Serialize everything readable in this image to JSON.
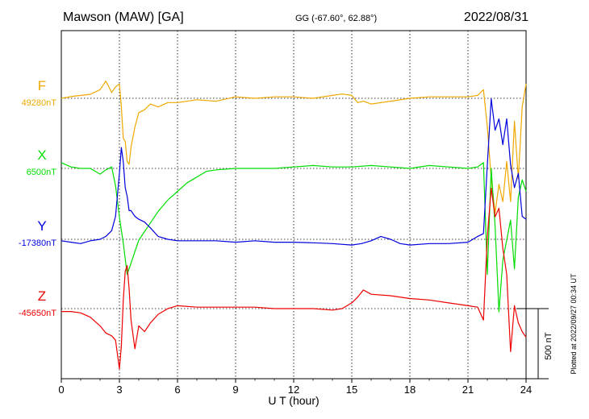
{
  "header": {
    "station": "Mawson (MAW)  [GA]",
    "coords": "GG (-67.60°,  62.88°)",
    "date": "2022/08/31"
  },
  "footer": {
    "plotted": "Plotted at 2022/09/27 00:34 UT"
  },
  "colors": {
    "F": "#f0a800",
    "X": "#00dd00",
    "Y": "#0000dd",
    "Z": "#ee0000",
    "axis": "#000000"
  },
  "chart_data": {
    "type": "line",
    "xlabel": "U T (hour)",
    "xlim": [
      0,
      24
    ],
    "x_ticks": [
      "0",
      "3",
      "6",
      "9",
      "12",
      "15",
      "18",
      "21",
      "24"
    ],
    "scale_bar": {
      "label": "500 nT",
      "value_nT": 500
    },
    "series": [
      {
        "name": "F",
        "baseline_label": "49280nT",
        "baseline_nT": 49280,
        "x": [
          0,
          0.5,
          1,
          1.5,
          2,
          2.3,
          2.6,
          2.8,
          3.0,
          3.1,
          3.2,
          3.3,
          3.4,
          3.5,
          3.6,
          3.8,
          4.0,
          4.3,
          4.6,
          5.0,
          5.5,
          6,
          7,
          8,
          9,
          10,
          11,
          12,
          13,
          14,
          14.5,
          15,
          15.3,
          15.6,
          16,
          17,
          18,
          19,
          20,
          21,
          21.5,
          21.8,
          22.0,
          22.2,
          22.4,
          22.6,
          22.8,
          23.0,
          23.2,
          23.4,
          23.6,
          23.8,
          24
        ],
        "values_nT": [
          49280,
          49286,
          49290,
          49294,
          49310,
          49340,
          49300,
          49320,
          49330,
          49250,
          49140,
          49130,
          49060,
          49050,
          49110,
          49180,
          49230,
          49240,
          49260,
          49250,
          49265,
          49265,
          49275,
          49270,
          49285,
          49280,
          49285,
          49285,
          49280,
          49290,
          49295,
          49290,
          49265,
          49270,
          49260,
          49270,
          49280,
          49285,
          49285,
          49285,
          49290,
          49310,
          49180,
          49000,
          48880,
          48980,
          48920,
          49060,
          48920,
          49200,
          49000,
          49250,
          49330
        ]
      },
      {
        "name": "X",
        "baseline_label": "6500nT",
        "baseline_nT": 6500,
        "x": [
          0,
          0.5,
          1,
          1.5,
          2,
          2.3,
          2.6,
          2.8,
          3.0,
          3.2,
          3.4,
          3.6,
          3.8,
          4.0,
          4.5,
          5,
          5.5,
          6,
          6.5,
          7,
          7.5,
          8,
          9,
          10,
          11,
          12,
          13,
          14,
          15,
          16,
          17,
          18,
          19,
          20,
          21,
          21.5,
          21.8,
          22.0,
          22.2,
          22.4,
          22.6,
          22.8,
          23.0,
          23.2,
          23.4,
          23.6,
          23.8,
          24
        ],
        "values_nT": [
          6520,
          6505,
          6500,
          6500,
          6480,
          6495,
          6505,
          6440,
          6330,
          6240,
          6130,
          6170,
          6210,
          6250,
          6300,
          6350,
          6390,
          6420,
          6450,
          6470,
          6490,
          6495,
          6500,
          6500,
          6500,
          6505,
          6510,
          6505,
          6505,
          6510,
          6505,
          6500,
          6510,
          6505,
          6500,
          6505,
          6520,
          6130,
          6500,
          6300,
          6000,
          6180,
          6250,
          6320,
          6150,
          6400,
          6460,
          6420
        ]
      },
      {
        "name": "Y",
        "baseline_label": "-17380nT",
        "baseline_nT": -17380,
        "x": [
          0,
          0.5,
          1,
          1.5,
          2,
          2.3,
          2.6,
          2.8,
          3.0,
          3.1,
          3.2,
          3.3,
          3.4,
          3.5,
          3.6,
          3.8,
          4.0,
          4.3,
          4.6,
          5,
          5.5,
          6,
          7,
          8,
          9,
          10,
          11,
          12,
          13,
          14,
          15,
          15.5,
          16,
          16.5,
          17,
          17.5,
          18,
          19,
          20,
          21,
          21.5,
          21.8,
          22.0,
          22.2,
          22.4,
          22.6,
          22.8,
          23.0,
          23.2,
          23.4,
          23.6,
          23.8,
          24
        ],
        "values_nT": [
          -17385,
          -17390,
          -17395,
          -17385,
          -17380,
          -17370,
          -17350,
          -17300,
          -17150,
          -17060,
          -17110,
          -17200,
          -17230,
          -17280,
          -17280,
          -17300,
          -17310,
          -17320,
          -17340,
          -17370,
          -17380,
          -17385,
          -17385,
          -17385,
          -17390,
          -17385,
          -17390,
          -17390,
          -17392,
          -17395,
          -17400,
          -17395,
          -17385,
          -17370,
          -17380,
          -17395,
          -17400,
          -17395,
          -17395,
          -17390,
          -17370,
          -17360,
          -17120,
          -16890,
          -17000,
          -16960,
          -17050,
          -16960,
          -17120,
          -17200,
          -17150,
          -17300,
          -17310
        ]
      },
      {
        "name": "Z",
        "baseline_label": "-45650nT",
        "baseline_nT": -45650,
        "x": [
          0,
          0.5,
          1,
          1.5,
          2,
          2.3,
          2.6,
          2.8,
          3.0,
          3.1,
          3.2,
          3.3,
          3.4,
          3.5,
          3.6,
          3.8,
          4.0,
          4.3,
          4.6,
          5,
          5.5,
          6,
          7,
          8,
          9,
          10,
          11,
          12,
          13,
          14,
          14.5,
          15,
          15.3,
          15.6,
          16,
          17,
          18,
          19,
          20,
          21,
          21.5,
          21.8,
          22.0,
          22.2,
          22.4,
          22.6,
          22.8,
          23.0,
          23.2,
          23.4,
          23.6,
          23.8,
          24
        ],
        "values_nT": [
          -45660,
          -45660,
          -45665,
          -45680,
          -45710,
          -45735,
          -45745,
          -45760,
          -45860,
          -45780,
          -45620,
          -45520,
          -45500,
          -45580,
          -45690,
          -45790,
          -45710,
          -45730,
          -45700,
          -45670,
          -45650,
          -45640,
          -45645,
          -45645,
          -45645,
          -45645,
          -45650,
          -45650,
          -45650,
          -45655,
          -45650,
          -45630,
          -45610,
          -45585,
          -45600,
          -45605,
          -45615,
          -45620,
          -45630,
          -45640,
          -45645,
          -45690,
          -45400,
          -45230,
          -45330,
          -45300,
          -45440,
          -45530,
          -45800,
          -45640,
          -45700,
          -45730,
          -45750
        ]
      }
    ]
  }
}
